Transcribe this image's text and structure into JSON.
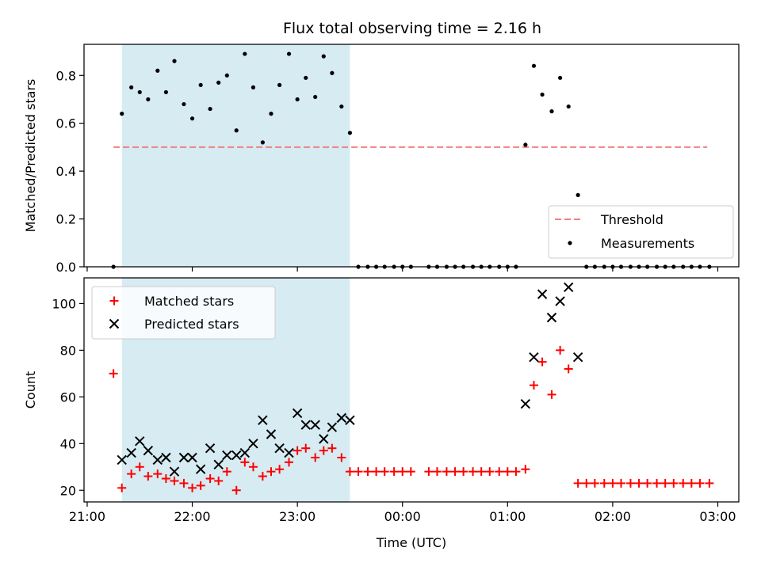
{
  "title": "Flux total observing time = 2.16 h",
  "xlabel": "Time (UTC)",
  "colors": {
    "threshold": "#f08080",
    "measurements": "#000000",
    "matched": "#ff0000",
    "predicted": "#000000",
    "span": "#add8e6"
  },
  "chart_data": [
    {
      "type": "scatter",
      "ylabel": "Matched/Predicted stars",
      "x_unit": "hours since 21:00 UTC",
      "xlim": [
        -0.03,
        6.2
      ],
      "ylim": [
        0,
        0.93
      ],
      "x_ticks": [
        {
          "x": 0,
          "label": "21:00"
        },
        {
          "x": 1,
          "label": "22:00"
        },
        {
          "x": 2,
          "label": "23:00"
        },
        {
          "x": 3,
          "label": "00:00"
        },
        {
          "x": 4,
          "label": "01:00"
        },
        {
          "x": 5,
          "label": "02:00"
        },
        {
          "x": 6,
          "label": "03:00"
        }
      ],
      "y_ticks": [
        0.0,
        0.2,
        0.4,
        0.6,
        0.8
      ],
      "y_tick_labels": [
        "0.0",
        "0.2",
        "0.4",
        "0.6",
        "0.8"
      ],
      "shaded_span": [
        0.33,
        2.5
      ],
      "threshold": {
        "name": "Threshold",
        "y": 0.5,
        "x": [
          0.25,
          5.9
        ]
      },
      "legend": {
        "position": "lower right",
        "entries": [
          "Threshold",
          "Measurements"
        ]
      },
      "series": [
        {
          "name": "Measurements",
          "x": [
            0.25,
            0.33,
            0.42,
            0.5,
            0.58,
            0.67,
            0.75,
            0.83,
            0.92,
            1.0,
            1.08,
            1.17,
            1.25,
            1.33,
            1.42,
            1.5,
            1.58,
            1.67,
            1.75,
            1.83,
            1.92,
            2.0,
            2.08,
            2.17,
            2.25,
            2.33,
            2.42,
            2.5,
            2.58,
            2.67,
            2.75,
            2.83,
            2.92,
            3.0,
            3.08,
            3.25,
            3.33,
            3.42,
            3.5,
            3.58,
            3.67,
            3.75,
            3.83,
            3.92,
            4.0,
            4.08,
            4.17,
            4.25,
            4.33,
            4.42,
            4.5,
            4.58,
            4.67,
            4.75,
            4.83,
            4.92,
            5.0,
            5.08,
            5.17,
            5.25,
            5.33,
            5.42,
            5.5,
            5.58,
            5.67,
            5.75,
            5.83,
            5.92
          ],
          "y": [
            0.0,
            0.64,
            0.75,
            0.73,
            0.7,
            0.82,
            0.73,
            0.86,
            0.68,
            0.62,
            0.76,
            0.66,
            0.77,
            0.8,
            0.57,
            0.89,
            0.75,
            0.52,
            0.64,
            0.76,
            0.89,
            0.7,
            0.79,
            0.71,
            0.88,
            0.81,
            0.67,
            0.56,
            0.0,
            0.0,
            0.0,
            0.0,
            0.0,
            0.0,
            0.0,
            0.0,
            0.0,
            0.0,
            0.0,
            0.0,
            0.0,
            0.0,
            0.0,
            0.0,
            0.0,
            0.0,
            0.51,
            0.84,
            0.72,
            0.65,
            0.79,
            0.67,
            0.3,
            0.0,
            0.0,
            0.0,
            0.0,
            0.0,
            0.0,
            0.0,
            0.0,
            0.0,
            0.0,
            0.0,
            0.0,
            0.0,
            0.0,
            0.0
          ]
        }
      ]
    },
    {
      "type": "scatter",
      "ylabel": "Count",
      "x_unit": "hours since 21:00 UTC",
      "xlim": [
        -0.03,
        6.2
      ],
      "ylim": [
        15,
        111
      ],
      "x_ticks": [
        {
          "x": 0,
          "label": "21:00"
        },
        {
          "x": 1,
          "label": "22:00"
        },
        {
          "x": 2,
          "label": "23:00"
        },
        {
          "x": 3,
          "label": "00:00"
        },
        {
          "x": 4,
          "label": "01:00"
        },
        {
          "x": 5,
          "label": "02:00"
        },
        {
          "x": 6,
          "label": "03:00"
        }
      ],
      "y_ticks": [
        20,
        40,
        60,
        80,
        100
      ],
      "y_tick_labels": [
        "20",
        "40",
        "60",
        "80",
        "100"
      ],
      "shaded_span": [
        0.33,
        2.5
      ],
      "legend": {
        "position": "upper left",
        "entries": [
          "Matched stars",
          "Predicted stars"
        ]
      },
      "series": [
        {
          "name": "Matched stars",
          "marker": "plus",
          "x": [
            0.25,
            0.33,
            0.42,
            0.5,
            0.58,
            0.67,
            0.75,
            0.83,
            0.92,
            1.0,
            1.08,
            1.17,
            1.25,
            1.33,
            1.42,
            1.5,
            1.58,
            1.67,
            1.75,
            1.83,
            1.92,
            2.0,
            2.08,
            2.17,
            2.25,
            2.33,
            2.42,
            2.5,
            2.58,
            2.67,
            2.75,
            2.83,
            2.92,
            3.0,
            3.08,
            3.25,
            3.33,
            3.42,
            3.5,
            3.58,
            3.67,
            3.75,
            3.83,
            3.92,
            4.0,
            4.08,
            4.17,
            4.25,
            4.33,
            4.42,
            4.5,
            4.58,
            4.67,
            4.75,
            4.83,
            4.92,
            5.0,
            5.08,
            5.17,
            5.25,
            5.33,
            5.42,
            5.5,
            5.58,
            5.67,
            5.75,
            5.83,
            5.92
          ],
          "y": [
            70,
            21,
            27,
            30,
            26,
            27,
            25,
            24,
            23,
            21,
            22,
            25,
            24,
            28,
            20,
            32,
            30,
            26,
            28,
            29,
            32,
            37,
            38,
            34,
            37,
            38,
            34,
            28,
            28,
            28,
            28,
            28,
            28,
            28,
            28,
            28,
            28,
            28,
            28,
            28,
            28,
            28,
            28,
            28,
            28,
            28,
            29,
            65,
            75,
            61,
            80,
            72,
            23,
            23,
            23,
            23,
            23,
            23,
            23,
            23,
            23,
            23,
            23,
            23,
            23,
            23,
            23,
            23
          ]
        },
        {
          "name": "Predicted stars",
          "marker": "x",
          "x": [
            0.33,
            0.42,
            0.5,
            0.58,
            0.67,
            0.75,
            0.83,
            0.92,
            1.0,
            1.08,
            1.17,
            1.25,
            1.33,
            1.42,
            1.5,
            1.58,
            1.67,
            1.75,
            1.83,
            1.92,
            2.0,
            2.08,
            2.17,
            2.25,
            2.33,
            2.42,
            2.5,
            4.17,
            4.25,
            4.33,
            4.42,
            4.5,
            4.58,
            4.67
          ],
          "y": [
            33,
            36,
            41,
            37,
            33,
            34,
            28,
            34,
            34,
            29,
            38,
            31,
            35,
            35,
            36,
            40,
            50,
            44,
            38,
            36,
            53,
            48,
            48,
            42,
            47,
            51,
            50,
            57,
            77,
            104,
            94,
            101,
            107,
            77
          ]
        }
      ]
    }
  ]
}
